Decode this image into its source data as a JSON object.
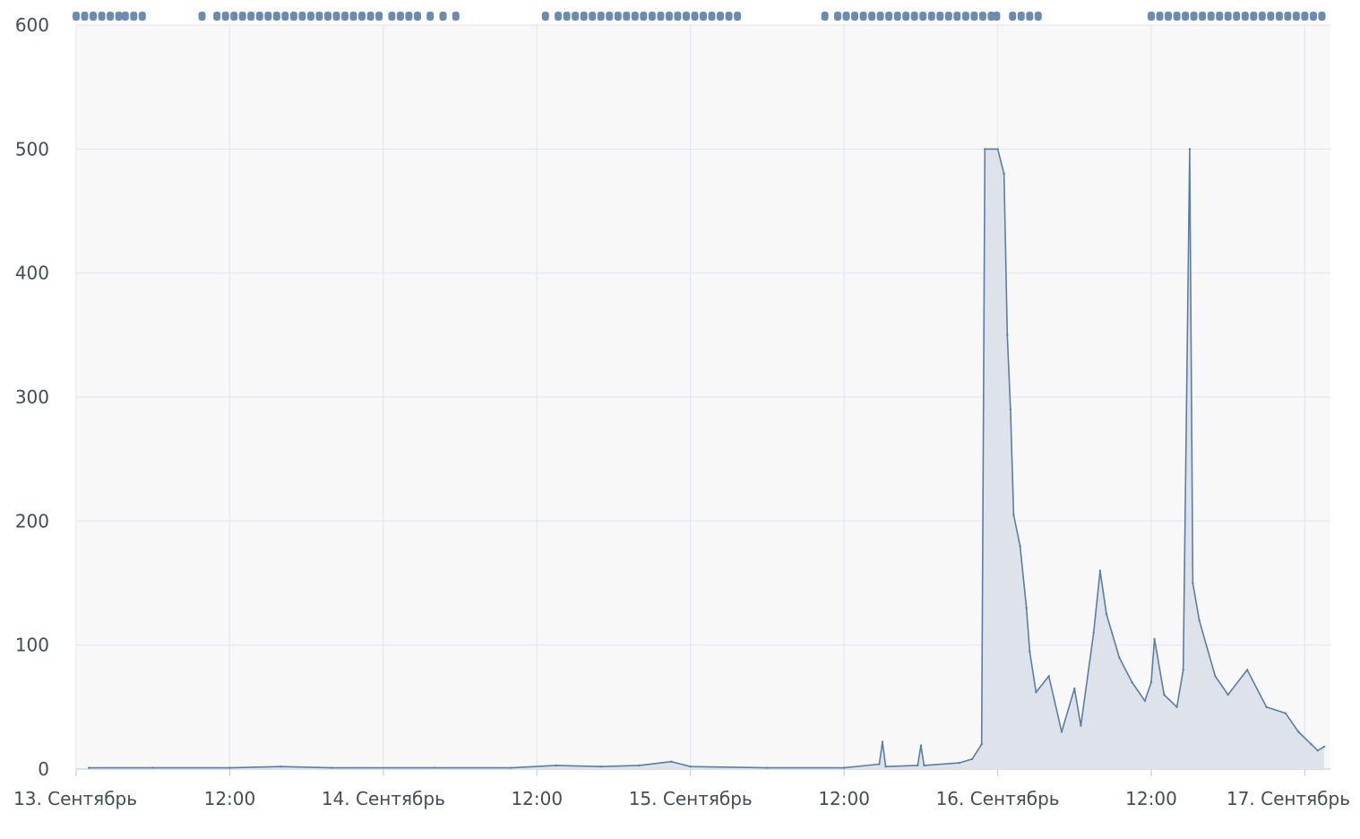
{
  "chart_data": {
    "type": "area",
    "title": "",
    "xlabel": "",
    "ylabel": "",
    "ylim": [
      0,
      600
    ],
    "xlim": [
      "2016-09-13T00:00",
      "2016-09-17T02:00"
    ],
    "grid": true,
    "legend": "none",
    "y_ticks": [
      0,
      100,
      200,
      300,
      400,
      500,
      600
    ],
    "x_ticks": [
      {
        "label": "13. Сентябрь",
        "x": "2016-09-13T00:00"
      },
      {
        "label": "12:00",
        "x": "2016-09-13T12:00"
      },
      {
        "label": "14. Сентябрь",
        "x": "2016-09-14T00:00"
      },
      {
        "label": "12:00",
        "x": "2016-09-14T12:00"
      },
      {
        "label": "15. Сентябрь",
        "x": "2016-09-15T00:00"
      },
      {
        "label": "12:00",
        "x": "2016-09-15T12:00"
      },
      {
        "label": "16. Сентябрь",
        "x": "2016-09-16T00:00"
      },
      {
        "label": "12:00",
        "x": "2016-09-16T12:00"
      },
      {
        "label": "17. Сентябрь",
        "x": "2016-09-17T00:00"
      }
    ],
    "colors": {
      "line": "#5b7ea6",
      "fill": "#dce2ea",
      "marker": "#6b8bb0",
      "grid": "#e4e7ee",
      "plot_background": "#f8f8f9",
      "axis": "#c9cfd9"
    },
    "series": [
      {
        "values": [
          [
            "2016-09-13T01:00",
            1
          ],
          [
            "2016-09-13T06:00",
            1
          ],
          [
            "2016-09-13T12:00",
            1
          ],
          [
            "2016-09-13T16:00",
            2
          ],
          [
            "2016-09-13T20:00",
            1
          ],
          [
            "2016-09-14T04:00",
            1
          ],
          [
            "2016-09-14T10:00",
            1
          ],
          [
            "2016-09-14T13:30",
            3
          ],
          [
            "2016-09-14T17:00",
            2
          ],
          [
            "2016-09-14T20:00",
            3
          ],
          [
            "2016-09-14T22:30",
            6
          ],
          [
            "2016-09-15T00:00",
            2
          ],
          [
            "2016-09-15T06:00",
            1
          ],
          [
            "2016-09-15T12:00",
            1
          ],
          [
            "2016-09-15T14:45",
            4
          ],
          [
            "2016-09-15T15:00",
            22
          ],
          [
            "2016-09-15T15:15",
            2
          ],
          [
            "2016-09-15T17:45",
            3
          ],
          [
            "2016-09-15T18:00",
            19
          ],
          [
            "2016-09-15T18:15",
            3
          ],
          [
            "2016-09-15T21:00",
            5
          ],
          [
            "2016-09-15T22:00",
            8
          ],
          [
            "2016-09-15T22:45",
            20
          ],
          [
            "2016-09-15T23:00",
            500
          ],
          [
            "2016-09-16T00:00",
            500
          ],
          [
            "2016-09-16T00:30",
            480
          ],
          [
            "2016-09-16T00:45",
            350
          ],
          [
            "2016-09-16T01:00",
            290
          ],
          [
            "2016-09-16T01:15",
            205
          ],
          [
            "2016-09-16T01:45",
            180
          ],
          [
            "2016-09-16T02:15",
            130
          ],
          [
            "2016-09-16T02:30",
            95
          ],
          [
            "2016-09-16T03:00",
            62
          ],
          [
            "2016-09-16T04:00",
            75
          ],
          [
            "2016-09-16T05:00",
            30
          ],
          [
            "2016-09-16T06:00",
            65
          ],
          [
            "2016-09-16T06:30",
            35
          ],
          [
            "2016-09-16T07:30",
            110
          ],
          [
            "2016-09-16T08:00",
            160
          ],
          [
            "2016-09-16T08:30",
            125
          ],
          [
            "2016-09-16T09:30",
            90
          ],
          [
            "2016-09-16T10:30",
            70
          ],
          [
            "2016-09-16T11:30",
            55
          ],
          [
            "2016-09-16T12:00",
            70
          ],
          [
            "2016-09-16T12:15",
            105
          ],
          [
            "2016-09-16T13:00",
            60
          ],
          [
            "2016-09-16T14:00",
            50
          ],
          [
            "2016-09-16T14:30",
            80
          ],
          [
            "2016-09-16T15:00",
            500
          ],
          [
            "2016-09-16T15:15",
            150
          ],
          [
            "2016-09-16T15:45",
            120
          ],
          [
            "2016-09-16T17:00",
            75
          ],
          [
            "2016-09-16T18:00",
            60
          ],
          [
            "2016-09-16T19:30",
            80
          ],
          [
            "2016-09-16T21:00",
            50
          ],
          [
            "2016-09-16T22:30",
            45
          ],
          [
            "2016-09-16T23:30",
            30
          ],
          [
            "2016-09-17T00:30",
            20
          ],
          [
            "2016-09-17T01:00",
            15
          ],
          [
            "2016-09-17T01:30",
            18
          ]
        ]
      }
    ],
    "marker_times": [
      "2016-09-13T00:00",
      "2016-09-13T00:40",
      "2016-09-13T01:20",
      "2016-09-13T02:00",
      "2016-09-13T02:40",
      "2016-09-13T03:20",
      "2016-09-13T03:50",
      "2016-09-13T04:30",
      "2016-09-13T05:10",
      "2016-09-13T09:50",
      "2016-09-13T11:00",
      "2016-09-13T11:40",
      "2016-09-13T12:20",
      "2016-09-13T13:00",
      "2016-09-13T13:40",
      "2016-09-13T14:20",
      "2016-09-13T15:00",
      "2016-09-13T15:40",
      "2016-09-13T16:20",
      "2016-09-13T17:00",
      "2016-09-13T17:40",
      "2016-09-13T18:20",
      "2016-09-13T19:00",
      "2016-09-13T19:40",
      "2016-09-13T20:20",
      "2016-09-13T21:00",
      "2016-09-13T21:40",
      "2016-09-13T22:20",
      "2016-09-13T23:00",
      "2016-09-13T23:40",
      "2016-09-14T00:40",
      "2016-09-14T01:20",
      "2016-09-14T02:00",
      "2016-09-14T02:40",
      "2016-09-14T03:40",
      "2016-09-14T04:40",
      "2016-09-14T05:40",
      "2016-09-14T12:40",
      "2016-09-14T13:40",
      "2016-09-14T14:20",
      "2016-09-14T15:00",
      "2016-09-14T15:40",
      "2016-09-14T16:20",
      "2016-09-14T17:00",
      "2016-09-14T17:40",
      "2016-09-14T18:20",
      "2016-09-14T19:00",
      "2016-09-14T19:40",
      "2016-09-14T20:20",
      "2016-09-14T21:00",
      "2016-09-14T21:40",
      "2016-09-14T22:20",
      "2016-09-14T23:00",
      "2016-09-14T23:40",
      "2016-09-15T00:20",
      "2016-09-15T01:00",
      "2016-09-15T01:40",
      "2016-09-15T02:20",
      "2016-09-15T03:00",
      "2016-09-15T03:40",
      "2016-09-15T10:30",
      "2016-09-15T11:30",
      "2016-09-15T12:10",
      "2016-09-15T12:50",
      "2016-09-15T13:30",
      "2016-09-15T14:10",
      "2016-09-15T14:50",
      "2016-09-15T15:30",
      "2016-09-15T16:10",
      "2016-09-15T16:50",
      "2016-09-15T17:30",
      "2016-09-15T18:10",
      "2016-09-15T18:50",
      "2016-09-15T19:30",
      "2016-09-15T20:10",
      "2016-09-15T20:50",
      "2016-09-15T21:30",
      "2016-09-15T22:10",
      "2016-09-15T22:50",
      "2016-09-15T23:30",
      "2016-09-15T23:55",
      "2016-09-16T01:10",
      "2016-09-16T01:50",
      "2016-09-16T02:30",
      "2016-09-16T03:10",
      "2016-09-16T12:00",
      "2016-09-16T12:40",
      "2016-09-16T13:20",
      "2016-09-16T14:00",
      "2016-09-16T14:40",
      "2016-09-16T15:20",
      "2016-09-16T16:00",
      "2016-09-16T16:40",
      "2016-09-16T17:20",
      "2016-09-16T18:00",
      "2016-09-16T18:40",
      "2016-09-16T19:20",
      "2016-09-16T20:00",
      "2016-09-16T20:40",
      "2016-09-16T21:20",
      "2016-09-16T22:00",
      "2016-09-16T22:40",
      "2016-09-16T23:20",
      "2016-09-17T00:00",
      "2016-09-17T00:40",
      "2016-09-17T01:20"
    ]
  }
}
